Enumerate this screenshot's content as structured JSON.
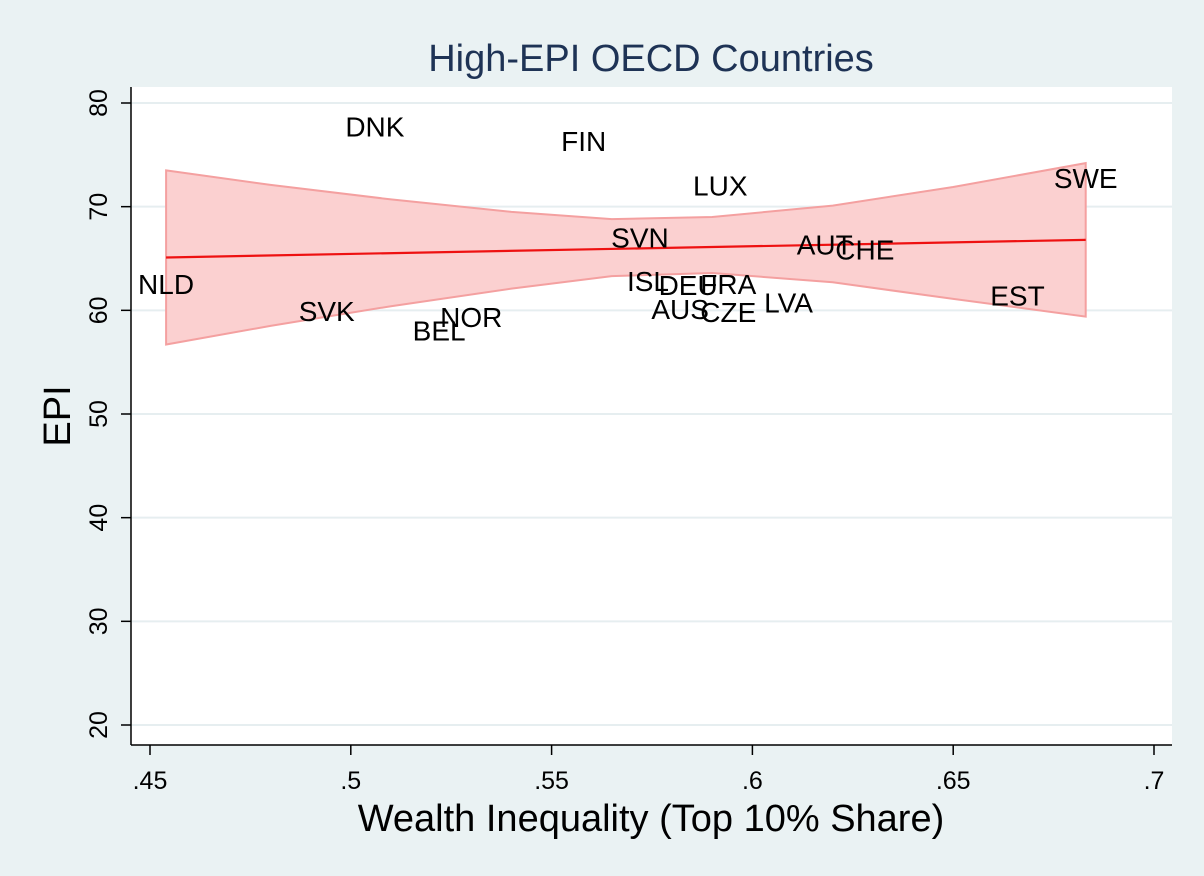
{
  "chart_data": {
    "type": "scatter",
    "title": "High-EPI OECD Countries",
    "xlabel": "Wealth Inequality (Top 10% Share)",
    "ylabel": "EPI",
    "xlim": [
      0.45,
      0.7
    ],
    "ylim": [
      20,
      80
    ],
    "x_ticks": [
      {
        "value": 0.45,
        "label": ".45"
      },
      {
        "value": 0.5,
        "label": ".5"
      },
      {
        "value": 0.55,
        "label": ".55"
      },
      {
        "value": 0.6,
        "label": ".6"
      },
      {
        "value": 0.65,
        "label": ".65"
      },
      {
        "value": 0.7,
        "label": ".7"
      }
    ],
    "y_ticks": [
      {
        "value": 20,
        "label": "20"
      },
      {
        "value": 30,
        "label": "30"
      },
      {
        "value": 40,
        "label": "40"
      },
      {
        "value": 50,
        "label": "50"
      },
      {
        "value": 60,
        "label": "60"
      },
      {
        "value": 70,
        "label": "70"
      },
      {
        "value": 80,
        "label": "80"
      }
    ],
    "grid": true,
    "points": [
      {
        "label": "NLD",
        "x": 0.454,
        "y": 62.5
      },
      {
        "label": "DNK",
        "x": 0.506,
        "y": 77.7
      },
      {
        "label": "SVK",
        "x": 0.494,
        "y": 59.9
      },
      {
        "label": "BEL",
        "x": 0.522,
        "y": 58.0
      },
      {
        "label": "NOR",
        "x": 0.53,
        "y": 59.3
      },
      {
        "label": "FIN",
        "x": 0.558,
        "y": 76.3
      },
      {
        "label": "SVN",
        "x": 0.572,
        "y": 67.0
      },
      {
        "label": "ISL",
        "x": 0.574,
        "y": 62.8
      },
      {
        "label": "AUS",
        "x": 0.582,
        "y": 60.1
      },
      {
        "label": "DEU",
        "x": 0.584,
        "y": 62.4
      },
      {
        "label": "FRA",
        "x": 0.594,
        "y": 62.5
      },
      {
        "label": "CZE",
        "x": 0.594,
        "y": 59.8
      },
      {
        "label": "LUX",
        "x": 0.592,
        "y": 72.0
      },
      {
        "label": "LVA",
        "x": 0.609,
        "y": 60.7
      },
      {
        "label": "AUT",
        "x": 0.618,
        "y": 66.3
      },
      {
        "label": "CHE",
        "x": 0.628,
        "y": 65.8
      },
      {
        "label": "EST",
        "x": 0.666,
        "y": 61.4
      },
      {
        "label": "SWE",
        "x": 0.683,
        "y": 72.7
      }
    ],
    "fit_line": {
      "x": [
        0.454,
        0.683
      ],
      "y": [
        65.1,
        66.8
      ],
      "color": "#ee1111"
    },
    "confidence_band": {
      "x": [
        0.454,
        0.48,
        0.51,
        0.54,
        0.565,
        0.59,
        0.62,
        0.65,
        0.683
      ],
      "upper": [
        73.5,
        72.1,
        70.7,
        69.5,
        68.8,
        69.0,
        70.1,
        71.9,
        74.2
      ],
      "lower": [
        56.7,
        58.5,
        60.4,
        62.1,
        63.3,
        63.6,
        62.7,
        61.1,
        59.4
      ],
      "fill_color": "#fbd0d0",
      "edge_color": "#f4a0a0"
    }
  }
}
